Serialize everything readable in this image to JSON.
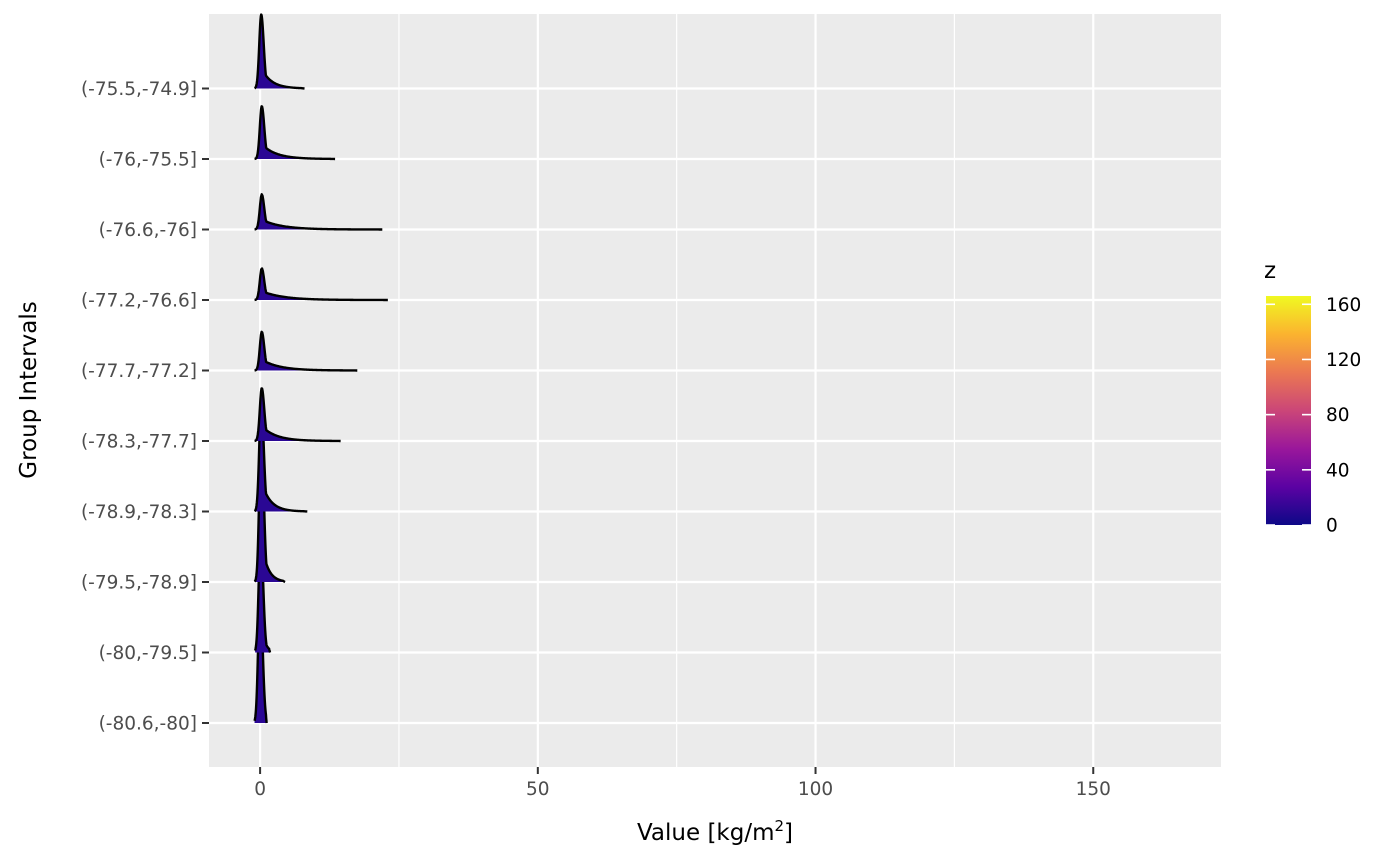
{
  "chart_data": {
    "type": "ridgeline",
    "title": "",
    "xlabel": "Value [kg/m",
    "xlabel_superscript": "2",
    "xlabel_suffix": "]",
    "ylabel": "Group Intervals",
    "xlim": [
      -9.2,
      173
    ],
    "x_ticks": [
      0,
      50,
      100,
      150
    ],
    "x_tick_labels": [
      "0",
      "50",
      "100",
      "150"
    ],
    "x_minor_ticks": [
      25,
      75,
      125
    ],
    "categories": [
      "(-80.6,-80]",
      "(-80,-79.5]",
      "(-79.5,-78.9]",
      "(-78.9,-78.3]",
      "(-78.3,-77.7]",
      "(-77.7,-77.2]",
      "(-77.2,-76.6]",
      "(-76.6,-76]",
      "(-76,-75.5]",
      "(-75.5,-74.9]"
    ],
    "grid": true,
    "panel_background": "#EBEBEB",
    "grid_color": "#FFFFFF",
    "outline_color": "#000000",
    "fill_color_scale": "plasma",
    "ridges": [
      {
        "group": "(-80.6,-80]",
        "min": -1.0,
        "max": 1.2,
        "peak_at": 0.0,
        "peak_height": 1.85,
        "tail_scale": 0.6
      },
      {
        "group": "(-80,-79.5]",
        "min": -0.9,
        "max": 1.8,
        "peak_at": 0.1,
        "peak_height": 1.65,
        "tail_scale": 0.7
      },
      {
        "group": "(-79.5,-78.9]",
        "min": -1.0,
        "max": 4.5,
        "peak_at": 0.2,
        "peak_height": 2.15,
        "tail_scale": 1.1
      },
      {
        "group": "(-78.9,-78.3]",
        "min": -1.0,
        "max": 8.5,
        "peak_at": 0.2,
        "peak_height": 1.55,
        "tail_scale": 1.6
      },
      {
        "group": "(-78.3,-77.7]",
        "min": -1.0,
        "max": 14.5,
        "peak_at": 0.3,
        "peak_height": 0.75,
        "tail_scale": 2.6
      },
      {
        "group": "(-77.7,-77.2]",
        "min": -1.0,
        "max": 17.5,
        "peak_at": 0.3,
        "peak_height": 0.55,
        "tail_scale": 3.2
      },
      {
        "group": "(-77.2,-76.6]",
        "min": -1.0,
        "max": 23.0,
        "peak_at": 0.3,
        "peak_height": 0.45,
        "tail_scale": 3.8
      },
      {
        "group": "(-76.6,-76]",
        "min": -1.0,
        "max": 22.0,
        "peak_at": 0.3,
        "peak_height": 0.5,
        "tail_scale": 3.6
      },
      {
        "group": "(-76,-75.5]",
        "min": -1.0,
        "max": 13.5,
        "peak_at": 0.3,
        "peak_height": 0.75,
        "tail_scale": 2.6
      },
      {
        "group": "(-75.5,-74.9]",
        "min": -1.0,
        "max": 8.0,
        "peak_at": 0.2,
        "peak_height": 1.05,
        "tail_scale": 1.8
      }
    ],
    "legend": {
      "title": "z",
      "position": "right",
      "range": [
        0,
        166
      ],
      "ticks": [
        0,
        40,
        80,
        120,
        160
      ],
      "tick_labels": [
        "0",
        "40",
        "80",
        "120",
        "160"
      ],
      "colors": [
        "#0D0887",
        "#5B02A3",
        "#9A179B",
        "#CB4678",
        "#EB7852",
        "#FBB32F",
        "#F0F921"
      ]
    }
  }
}
